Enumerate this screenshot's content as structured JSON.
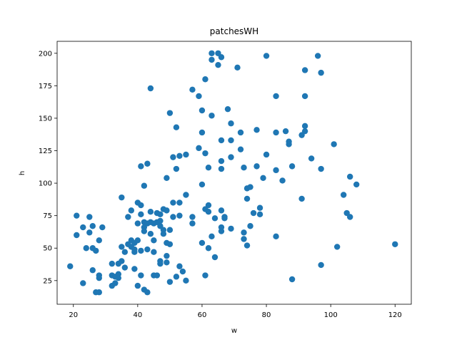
{
  "chart_data": {
    "type": "scatter",
    "title": "patchesWH",
    "xlabel": "w",
    "ylabel": "h",
    "xlim": [
      14.95,
      125.05
    ],
    "ylim": [
      6.8,
      209.2
    ],
    "xticks": [
      20,
      40,
      60,
      80,
      100,
      120
    ],
    "yticks": [
      25,
      50,
      75,
      100,
      125,
      150,
      175,
      200
    ],
    "color": "#1f77b4",
    "grid": false,
    "legend": "none",
    "series": [
      {
        "points": [
          [
            19,
            36
          ],
          [
            21,
            75
          ],
          [
            21,
            60
          ],
          [
            23,
            66
          ],
          [
            23,
            23
          ],
          [
            24,
            50
          ],
          [
            25,
            74
          ],
          [
            25,
            62
          ],
          [
            26,
            67
          ],
          [
            26,
            50
          ],
          [
            26,
            33
          ],
          [
            27,
            48
          ],
          [
            27,
            16
          ],
          [
            28,
            56
          ],
          [
            28,
            29
          ],
          [
            28,
            27
          ],
          [
            28,
            16
          ],
          [
            29,
            66
          ],
          [
            32,
            38
          ],
          [
            32,
            29
          ],
          [
            32,
            21
          ],
          [
            33,
            23
          ],
          [
            33,
            28
          ],
          [
            34,
            38
          ],
          [
            34,
            30
          ],
          [
            34,
            27
          ],
          [
            35,
            89
          ],
          [
            35,
            51
          ],
          [
            35,
            40
          ],
          [
            36,
            47
          ],
          [
            36,
            35
          ],
          [
            37,
            74
          ],
          [
            37,
            53
          ],
          [
            38,
            79
          ],
          [
            38,
            56
          ],
          [
            38,
            51
          ],
          [
            39,
            54
          ],
          [
            39,
            49
          ],
          [
            39,
            47
          ],
          [
            39,
            34
          ],
          [
            40,
            85
          ],
          [
            40,
            69
          ],
          [
            40,
            56
          ],
          [
            40,
            21
          ],
          [
            41,
            113
          ],
          [
            41,
            83
          ],
          [
            41,
            76
          ],
          [
            41,
            48
          ],
          [
            41,
            29
          ],
          [
            42,
            98
          ],
          [
            42,
            70
          ],
          [
            42,
            66
          ],
          [
            42,
            63
          ],
          [
            42,
            18
          ],
          [
            43,
            115
          ],
          [
            43,
            69
          ],
          [
            43,
            49
          ],
          [
            43,
            16
          ],
          [
            44,
            173
          ],
          [
            44,
            78
          ],
          [
            44,
            70
          ],
          [
            44,
            61
          ],
          [
            45,
            69
          ],
          [
            45,
            56
          ],
          [
            45,
            47
          ],
          [
            45,
            29
          ],
          [
            46,
            77
          ],
          [
            46,
            70
          ],
          [
            46,
            29
          ],
          [
            47,
            76
          ],
          [
            47,
            71
          ],
          [
            47,
            67
          ],
          [
            47,
            40
          ],
          [
            47,
            38
          ],
          [
            48,
            80
          ],
          [
            48,
            64
          ],
          [
            48,
            61
          ],
          [
            49,
            104
          ],
          [
            49,
            79
          ],
          [
            49,
            54
          ],
          [
            49,
            44
          ],
          [
            49,
            39
          ],
          [
            50,
            154
          ],
          [
            50,
            64
          ],
          [
            50,
            53
          ],
          [
            50,
            24
          ],
          [
            51,
            120
          ],
          [
            51,
            85
          ],
          [
            51,
            74
          ],
          [
            52,
            143
          ],
          [
            52,
            111
          ],
          [
            52,
            28
          ],
          [
            53,
            121
          ],
          [
            53,
            85
          ],
          [
            53,
            75
          ],
          [
            53,
            36
          ],
          [
            54,
            32
          ],
          [
            55,
            122
          ],
          [
            55,
            91
          ],
          [
            55,
            25
          ],
          [
            57,
            172
          ],
          [
            57,
            74
          ],
          [
            57,
            69
          ],
          [
            59,
            167
          ],
          [
            59,
            127
          ],
          [
            60,
            156
          ],
          [
            60,
            139
          ],
          [
            60,
            99
          ],
          [
            60,
            54
          ],
          [
            61,
            180
          ],
          [
            61,
            123
          ],
          [
            61,
            80
          ],
          [
            61,
            29
          ],
          [
            62,
            112
          ],
          [
            62,
            83
          ],
          [
            62,
            78
          ],
          [
            62,
            50
          ],
          [
            63,
            200
          ],
          [
            63,
            195
          ],
          [
            63,
            152
          ],
          [
            63,
            59
          ],
          [
            64,
            73
          ],
          [
            64,
            43
          ],
          [
            65,
            200
          ],
          [
            65,
            191
          ],
          [
            66,
            197
          ],
          [
            66,
            133
          ],
          [
            66,
            117
          ],
          [
            66,
            111
          ],
          [
            66,
            79
          ],
          [
            66,
            66
          ],
          [
            66,
            63
          ],
          [
            67,
            74
          ],
          [
            67,
            73
          ],
          [
            68,
            157
          ],
          [
            69,
            146
          ],
          [
            69,
            133
          ],
          [
            69,
            120
          ],
          [
            69,
            65
          ],
          [
            71,
            189
          ],
          [
            72,
            139
          ],
          [
            72,
            126
          ],
          [
            73,
            112
          ],
          [
            73,
            62
          ],
          [
            73,
            57
          ],
          [
            74,
            96
          ],
          [
            74,
            88
          ],
          [
            74,
            52
          ],
          [
            75,
            97
          ],
          [
            75,
            67
          ],
          [
            76,
            77
          ],
          [
            77,
            141
          ],
          [
            77,
            113
          ],
          [
            78,
            81
          ],
          [
            78,
            76
          ],
          [
            79,
            104
          ],
          [
            80,
            198
          ],
          [
            80,
            122
          ],
          [
            83,
            167
          ],
          [
            83,
            139
          ],
          [
            83,
            110
          ],
          [
            83,
            59
          ],
          [
            85,
            102
          ],
          [
            86,
            140
          ],
          [
            87,
            132
          ],
          [
            87,
            130
          ],
          [
            88,
            113
          ],
          [
            88,
            26
          ],
          [
            91,
            137
          ],
          [
            91,
            88
          ],
          [
            92,
            187
          ],
          [
            92,
            167
          ],
          [
            92,
            144
          ],
          [
            92,
            140
          ],
          [
            94,
            119
          ],
          [
            96,
            198
          ],
          [
            97,
            185
          ],
          [
            97,
            111
          ],
          [
            97,
            37
          ],
          [
            101,
            130
          ],
          [
            102,
            51
          ],
          [
            104,
            91
          ],
          [
            105,
            77
          ],
          [
            106,
            105
          ],
          [
            106,
            74
          ],
          [
            108,
            99
          ],
          [
            120,
            53
          ]
        ]
      }
    ]
  }
}
